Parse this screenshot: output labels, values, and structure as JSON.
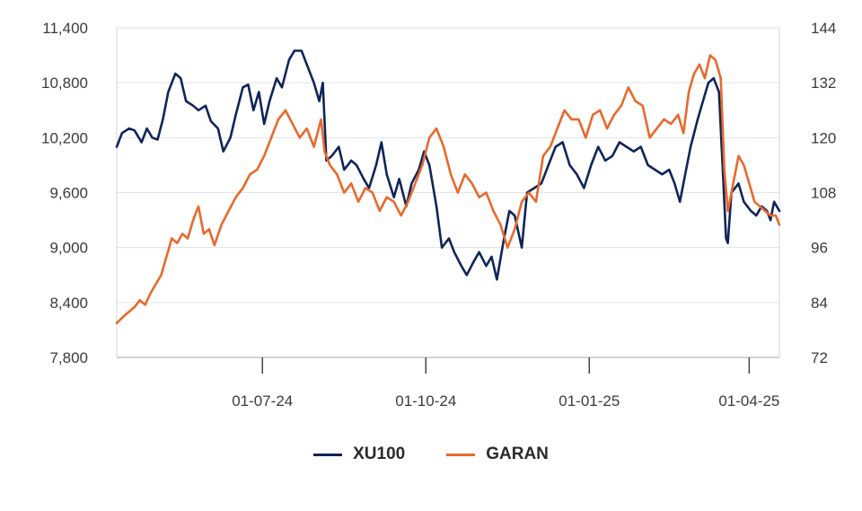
{
  "chart_data": {
    "type": "line",
    "x_axis": {
      "tick_labels": [
        "01-07-24",
        "01-10-24",
        "01-01-25",
        "01-04-25"
      ],
      "tick_dates": [
        "2024-07-01",
        "2024-10-01",
        "2025-01-01",
        "2025-04-01"
      ],
      "range": [
        "2024-04-10",
        "2025-04-18"
      ]
    },
    "y_axis_left": {
      "tick_labels": [
        "11,400",
        "10,800",
        "10,200",
        "9,600",
        "9,000",
        "8,400",
        "7,800"
      ],
      "ylim": [
        7800,
        11400
      ]
    },
    "y_axis_right": {
      "tick_labels": [
        "144",
        "132",
        "120",
        "108",
        "96",
        "84",
        "72"
      ],
      "ylim": [
        72,
        144
      ]
    },
    "grid": "horizontal",
    "legend_position": "bottom-center",
    "series": [
      {
        "name": "XU100",
        "axis": "left",
        "color": "#0f2559",
        "points": [
          [
            "2024-04-10",
            10100
          ],
          [
            "2024-04-13",
            10250
          ],
          [
            "2024-04-17",
            10300
          ],
          [
            "2024-04-20",
            10280
          ],
          [
            "2024-04-24",
            10150
          ],
          [
            "2024-04-27",
            10300
          ],
          [
            "2024-04-30",
            10200
          ],
          [
            "2024-05-03",
            10180
          ],
          [
            "2024-05-06",
            10400
          ],
          [
            "2024-05-09",
            10700
          ],
          [
            "2024-05-13",
            10900
          ],
          [
            "2024-05-16",
            10850
          ],
          [
            "2024-05-19",
            10600
          ],
          [
            "2024-05-23",
            10550
          ],
          [
            "2024-05-26",
            10500
          ],
          [
            "2024-05-30",
            10550
          ],
          [
            "2024-06-02",
            10380
          ],
          [
            "2024-06-06",
            10300
          ],
          [
            "2024-06-09",
            10050
          ],
          [
            "2024-06-13",
            10200
          ],
          [
            "2024-06-16",
            10450
          ],
          [
            "2024-06-20",
            10750
          ],
          [
            "2024-06-23",
            10780
          ],
          [
            "2024-06-26",
            10500
          ],
          [
            "2024-06-29",
            10700
          ],
          [
            "2024-07-02",
            10350
          ],
          [
            "2024-07-05",
            10600
          ],
          [
            "2024-07-09",
            10850
          ],
          [
            "2024-07-12",
            10750
          ],
          [
            "2024-07-16",
            11050
          ],
          [
            "2024-07-19",
            11150
          ],
          [
            "2024-07-23",
            11150
          ],
          [
            "2024-07-26",
            11000
          ],
          [
            "2024-07-30",
            10800
          ],
          [
            "2024-08-02",
            10600
          ],
          [
            "2024-08-04",
            10800
          ],
          [
            "2024-08-06",
            9950
          ],
          [
            "2024-08-09",
            10000
          ],
          [
            "2024-08-13",
            10100
          ],
          [
            "2024-08-16",
            9850
          ],
          [
            "2024-08-20",
            9950
          ],
          [
            "2024-08-23",
            9900
          ],
          [
            "2024-08-27",
            9750
          ],
          [
            "2024-08-30",
            9650
          ],
          [
            "2024-09-03",
            9900
          ],
          [
            "2024-09-06",
            10150
          ],
          [
            "2024-09-09",
            9800
          ],
          [
            "2024-09-13",
            9550
          ],
          [
            "2024-09-16",
            9750
          ],
          [
            "2024-09-20",
            9450
          ],
          [
            "2024-09-23",
            9700
          ],
          [
            "2024-09-27",
            9850
          ],
          [
            "2024-09-30",
            10050
          ],
          [
            "2024-10-03",
            9900
          ],
          [
            "2024-10-07",
            9450
          ],
          [
            "2024-10-10",
            9000
          ],
          [
            "2024-10-14",
            9100
          ],
          [
            "2024-10-17",
            8950
          ],
          [
            "2024-10-21",
            8800
          ],
          [
            "2024-10-24",
            8700
          ],
          [
            "2024-10-28",
            8850
          ],
          [
            "2024-10-31",
            8950
          ],
          [
            "2024-11-04",
            8800
          ],
          [
            "2024-11-07",
            8900
          ],
          [
            "2024-11-10",
            8650
          ],
          [
            "2024-11-14",
            9100
          ],
          [
            "2024-11-17",
            9400
          ],
          [
            "2024-11-20",
            9350
          ],
          [
            "2024-11-24",
            9000
          ],
          [
            "2024-11-27",
            9600
          ],
          [
            "2024-12-01",
            9650
          ],
          [
            "2024-12-05",
            9700
          ],
          [
            "2024-12-09",
            9900
          ],
          [
            "2024-12-13",
            10100
          ],
          [
            "2024-12-17",
            10150
          ],
          [
            "2024-12-21",
            9900
          ],
          [
            "2024-12-25",
            9800
          ],
          [
            "2024-12-29",
            9650
          ],
          [
            "2025-01-02",
            9900
          ],
          [
            "2025-01-06",
            10100
          ],
          [
            "2025-01-10",
            9950
          ],
          [
            "2025-01-14",
            10000
          ],
          [
            "2025-01-18",
            10150
          ],
          [
            "2025-01-22",
            10100
          ],
          [
            "2025-01-26",
            10050
          ],
          [
            "2025-01-30",
            10100
          ],
          [
            "2025-02-03",
            9900
          ],
          [
            "2025-02-07",
            9850
          ],
          [
            "2025-02-11",
            9800
          ],
          [
            "2025-02-15",
            9850
          ],
          [
            "2025-02-18",
            9700
          ],
          [
            "2025-02-21",
            9500
          ],
          [
            "2025-02-24",
            9800
          ],
          [
            "2025-02-27",
            10100
          ],
          [
            "2025-03-03",
            10400
          ],
          [
            "2025-03-06",
            10600
          ],
          [
            "2025-03-09",
            10800
          ],
          [
            "2025-03-12",
            10850
          ],
          [
            "2025-03-15",
            10700
          ],
          [
            "2025-03-17",
            9900
          ],
          [
            "2025-03-19",
            9100
          ],
          [
            "2025-03-20",
            9050
          ],
          [
            "2025-03-22",
            9600
          ],
          [
            "2025-03-26",
            9700
          ],
          [
            "2025-03-29",
            9500
          ],
          [
            "2025-04-02",
            9400
          ],
          [
            "2025-04-05",
            9350
          ],
          [
            "2025-04-08",
            9450
          ],
          [
            "2025-04-11",
            9400
          ],
          [
            "2025-04-13",
            9300
          ],
          [
            "2025-04-15",
            9500
          ],
          [
            "2025-04-18",
            9400
          ]
        ]
      },
      {
        "name": "GARAN",
        "axis": "right",
        "color": "#e8692d",
        "points": [
          [
            "2024-04-10",
            79.5
          ],
          [
            "2024-04-14",
            81
          ],
          [
            "2024-04-17",
            82
          ],
          [
            "2024-04-20",
            83
          ],
          [
            "2024-04-23",
            84.5
          ],
          [
            "2024-04-26",
            83.5
          ],
          [
            "2024-04-29",
            86
          ],
          [
            "2024-05-02",
            88
          ],
          [
            "2024-05-05",
            90
          ],
          [
            "2024-05-08",
            94
          ],
          [
            "2024-05-11",
            98
          ],
          [
            "2024-05-14",
            97
          ],
          [
            "2024-05-17",
            99
          ],
          [
            "2024-05-20",
            98
          ],
          [
            "2024-05-23",
            102
          ],
          [
            "2024-05-26",
            105
          ],
          [
            "2024-05-29",
            99
          ],
          [
            "2024-06-01",
            100
          ],
          [
            "2024-06-04",
            96.5
          ],
          [
            "2024-06-08",
            101
          ],
          [
            "2024-06-12",
            104
          ],
          [
            "2024-06-16",
            107
          ],
          [
            "2024-06-20",
            109
          ],
          [
            "2024-06-24",
            112
          ],
          [
            "2024-06-28",
            113
          ],
          [
            "2024-07-02",
            116
          ],
          [
            "2024-07-06",
            120
          ],
          [
            "2024-07-10",
            124
          ],
          [
            "2024-07-14",
            126
          ],
          [
            "2024-07-18",
            123
          ],
          [
            "2024-07-22",
            120
          ],
          [
            "2024-07-26",
            122
          ],
          [
            "2024-07-30",
            118
          ],
          [
            "2024-08-03",
            124
          ],
          [
            "2024-08-05",
            117
          ],
          [
            "2024-08-08",
            114
          ],
          [
            "2024-08-12",
            112
          ],
          [
            "2024-08-16",
            108
          ],
          [
            "2024-08-20",
            110
          ],
          [
            "2024-08-24",
            106
          ],
          [
            "2024-08-28",
            109
          ],
          [
            "2024-09-01",
            108
          ],
          [
            "2024-09-05",
            104
          ],
          [
            "2024-09-09",
            107
          ],
          [
            "2024-09-13",
            106
          ],
          [
            "2024-09-17",
            103
          ],
          [
            "2024-09-21",
            106
          ],
          [
            "2024-09-25",
            110
          ],
          [
            "2024-09-29",
            114
          ],
          [
            "2024-10-03",
            120
          ],
          [
            "2024-10-07",
            122
          ],
          [
            "2024-10-11",
            118
          ],
          [
            "2024-10-15",
            112
          ],
          [
            "2024-10-19",
            108
          ],
          [
            "2024-10-23",
            112
          ],
          [
            "2024-10-27",
            110
          ],
          [
            "2024-10-31",
            107
          ],
          [
            "2024-11-04",
            108
          ],
          [
            "2024-11-08",
            104
          ],
          [
            "2024-11-12",
            101
          ],
          [
            "2024-11-16",
            96
          ],
          [
            "2024-11-20",
            100
          ],
          [
            "2024-11-24",
            106
          ],
          [
            "2024-11-28",
            108
          ],
          [
            "2024-12-02",
            106
          ],
          [
            "2024-12-06",
            116
          ],
          [
            "2024-12-10",
            118
          ],
          [
            "2024-12-14",
            122
          ],
          [
            "2024-12-18",
            126
          ],
          [
            "2024-12-22",
            124
          ],
          [
            "2024-12-26",
            124
          ],
          [
            "2024-12-30",
            120
          ],
          [
            "2025-01-03",
            125
          ],
          [
            "2025-01-07",
            126
          ],
          [
            "2025-01-11",
            122
          ],
          [
            "2025-01-15",
            125
          ],
          [
            "2025-01-19",
            127
          ],
          [
            "2025-01-23",
            131
          ],
          [
            "2025-01-27",
            128
          ],
          [
            "2025-01-31",
            127
          ],
          [
            "2025-02-04",
            120
          ],
          [
            "2025-02-08",
            122
          ],
          [
            "2025-02-12",
            124
          ],
          [
            "2025-02-16",
            123
          ],
          [
            "2025-02-20",
            125
          ],
          [
            "2025-02-23",
            121
          ],
          [
            "2025-02-26",
            130
          ],
          [
            "2025-03-01",
            134
          ],
          [
            "2025-03-04",
            136
          ],
          [
            "2025-03-07",
            133
          ],
          [
            "2025-03-10",
            138
          ],
          [
            "2025-03-13",
            137
          ],
          [
            "2025-03-16",
            133
          ],
          [
            "2025-03-18",
            113
          ],
          [
            "2025-03-20",
            104
          ],
          [
            "2025-03-23",
            110
          ],
          [
            "2025-03-26",
            116
          ],
          [
            "2025-03-29",
            114
          ],
          [
            "2025-04-01",
            110
          ],
          [
            "2025-04-04",
            106
          ],
          [
            "2025-04-07",
            105
          ],
          [
            "2025-04-10",
            104
          ],
          [
            "2025-04-13",
            103
          ],
          [
            "2025-04-16",
            103
          ],
          [
            "2025-04-18",
            101
          ]
        ]
      }
    ]
  },
  "legend": [
    {
      "label": "XU100",
      "color": "#0f2559"
    },
    {
      "label": "GARAN",
      "color": "#e8692d"
    }
  ]
}
